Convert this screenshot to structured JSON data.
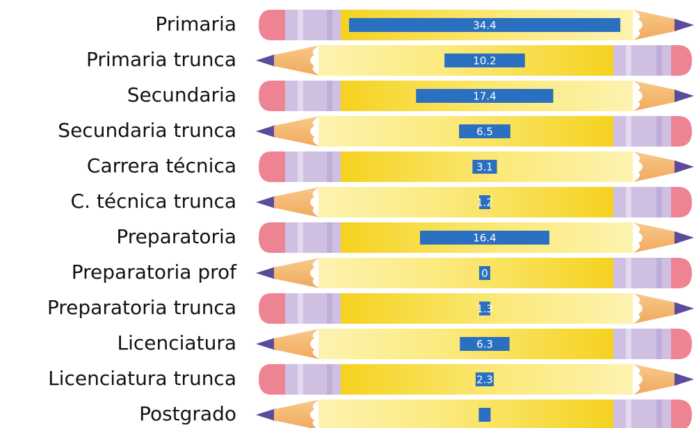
{
  "chart_data": {
    "type": "bar",
    "categories": [
      "Primaria",
      "Primaria trunca",
      "Secundaria",
      "Secundaria trunca",
      "Carrera técnica",
      "C. técnica trunca",
      "Preparatoria",
      "Preparatoria prof",
      "Preparatoria trunca",
      "Licenciatura",
      "Licenciatura trunca",
      "Postgrado"
    ],
    "values": [
      34.4,
      10.2,
      17.4,
      6.5,
      3.1,
      1.2,
      16.4,
      0,
      1.3,
      6.3,
      2.3,
      1.5
    ],
    "value_labels": [
      "34.4",
      "10.2",
      "17.4",
      "6.5",
      "3.1",
      "1.2",
      "16.4",
      "0",
      "1.3",
      "6.3",
      "2.3",
      null
    ],
    "color": "#2a6fc0"
  }
}
